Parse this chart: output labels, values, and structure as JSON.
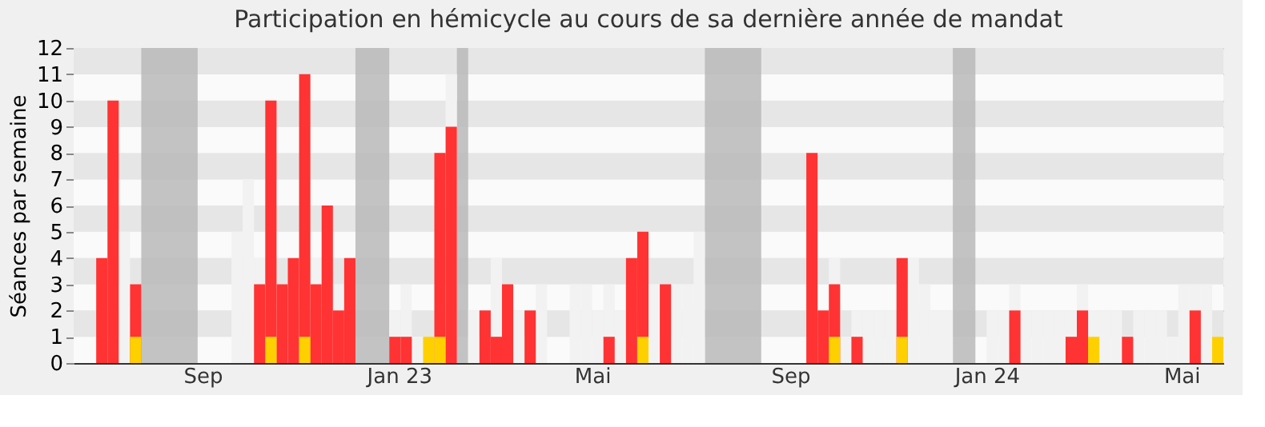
{
  "chart_data": {
    "type": "bar",
    "title": "Participation en hémicycle au cours de sa dernière année de mandat",
    "ylabel": "Séances par semaine",
    "x": [
      "2022-06-27",
      "2022-07-04",
      "2022-07-11",
      "2022-07-18",
      "2022-07-25",
      "2022-08-01",
      "2022-08-08",
      "2022-08-15",
      "2022-08-22",
      "2022-08-29",
      "2022-09-05",
      "2022-09-12",
      "2022-09-19",
      "2022-09-26",
      "2022-10-03",
      "2022-10-10",
      "2022-10-17",
      "2022-10-24",
      "2022-10-31",
      "2022-11-07",
      "2022-11-14",
      "2022-11-21",
      "2022-11-28",
      "2022-12-05",
      "2022-12-12",
      "2022-12-19",
      "2022-12-26",
      "2023-01-02",
      "2023-01-09",
      "2023-01-16",
      "2023-01-23",
      "2023-01-30",
      "2023-02-06",
      "2023-02-13",
      "2023-02-20",
      "2023-02-27",
      "2023-03-06",
      "2023-03-13",
      "2023-03-20",
      "2023-03-27",
      "2023-04-03",
      "2023-04-10",
      "2023-04-17",
      "2023-04-24",
      "2023-05-01",
      "2023-05-08",
      "2023-05-15",
      "2023-05-22",
      "2023-05-29",
      "2023-06-05",
      "2023-06-12",
      "2023-06-19",
      "2023-06-26",
      "2023-07-03",
      "2023-07-10",
      "2023-07-17",
      "2023-07-24",
      "2023-07-31",
      "2023-08-07",
      "2023-08-14",
      "2023-08-21",
      "2023-08-28",
      "2023-09-04",
      "2023-09-11",
      "2023-09-18",
      "2023-09-25",
      "2023-10-02",
      "2023-10-09",
      "2023-10-16",
      "2023-10-23",
      "2023-10-30",
      "2023-11-06",
      "2023-11-13",
      "2023-11-20",
      "2023-11-27",
      "2023-12-04",
      "2023-12-11",
      "2023-12-18",
      "2023-12-25",
      "2024-01-01",
      "2024-01-08",
      "2024-01-15",
      "2024-01-22",
      "2024-01-29",
      "2024-02-05",
      "2024-02-12",
      "2024-02-19",
      "2024-02-26",
      "2024-03-04",
      "2024-03-11",
      "2024-03-18",
      "2024-03-25",
      "2024-04-01",
      "2024-04-08",
      "2024-04-15",
      "2024-04-22",
      "2024-04-29",
      "2024-05-06",
      "2024-05-13",
      "2024-05-20"
    ],
    "xlim": [
      "2022-06-13",
      "2024-05-27"
    ],
    "xticks": [
      {
        "value": "2022-09-01",
        "label": "Sep"
      },
      {
        "value": "2023-01-01",
        "label": "Jan 23"
      },
      {
        "value": "2023-05-01",
        "label": "Mai"
      },
      {
        "value": "2023-09-01",
        "label": "Sep"
      },
      {
        "value": "2024-01-01",
        "label": "Jan 24"
      },
      {
        "value": "2024-05-01",
        "label": "Mai"
      }
    ],
    "series": [
      {
        "color": "#f2f2f2",
        "values": [
          null,
          null,
          5,
          null,
          null,
          null,
          null,
          null,
          null,
          null,
          null,
          null,
          5,
          7,
          4,
          null,
          null,
          null,
          null,
          4,
          null,
          3,
          null,
          null,
          null,
          null,
          2,
          3,
          1,
          null,
          null,
          11,
          null,
          2,
          null,
          4,
          null,
          2,
          null,
          3,
          null,
          null,
          3,
          3,
          2,
          3,
          2,
          null,
          null,
          3,
          null,
          3,
          3,
          5,
          null,
          null,
          null,
          null,
          null,
          null,
          null,
          null,
          null,
          null,
          null,
          4,
          1,
          2,
          2,
          2,
          2,
          null,
          4,
          3,
          2,
          2,
          null,
          null,
          null,
          2,
          2,
          3,
          2,
          2,
          2,
          2,
          2,
          3,
          2,
          2,
          2,
          null,
          2,
          2,
          2,
          1,
          3,
          3,
          3,
          null
        ]
      },
      {
        "color": "#ff3333",
        "values": [
          4,
          10,
          null,
          3,
          null,
          null,
          null,
          null,
          null,
          null,
          null,
          null,
          null,
          null,
          3,
          10,
          3,
          4,
          11,
          3,
          6,
          2,
          4,
          null,
          null,
          null,
          1,
          1,
          null,
          null,
          8,
          9,
          null,
          null,
          2,
          1,
          3,
          null,
          2,
          null,
          null,
          null,
          null,
          null,
          null,
          1,
          null,
          4,
          5,
          null,
          3,
          null,
          null,
          null,
          null,
          null,
          null,
          null,
          null,
          null,
          null,
          null,
          null,
          8,
          2,
          3,
          null,
          1,
          null,
          null,
          null,
          4,
          null,
          null,
          null,
          null,
          null,
          null,
          null,
          null,
          null,
          2,
          null,
          null,
          null,
          null,
          1,
          2,
          null,
          null,
          null,
          1,
          null,
          null,
          null,
          null,
          null,
          2,
          null,
          null
        ]
      },
      {
        "color": "#ffd000",
        "values": [
          null,
          null,
          null,
          1,
          null,
          null,
          null,
          null,
          null,
          null,
          null,
          null,
          null,
          null,
          null,
          1,
          null,
          null,
          1,
          null,
          null,
          null,
          null,
          null,
          null,
          null,
          null,
          null,
          null,
          1,
          1,
          null,
          null,
          null,
          null,
          null,
          null,
          null,
          null,
          null,
          null,
          null,
          null,
          null,
          null,
          null,
          null,
          null,
          1,
          null,
          null,
          null,
          null,
          null,
          null,
          null,
          null,
          null,
          null,
          null,
          null,
          null,
          null,
          null,
          null,
          1,
          null,
          null,
          null,
          null,
          null,
          1,
          null,
          null,
          null,
          null,
          null,
          null,
          null,
          null,
          null,
          null,
          null,
          null,
          null,
          null,
          null,
          null,
          1,
          null,
          null,
          null,
          null,
          null,
          null,
          null,
          null,
          null,
          null,
          1
        ]
      }
    ],
    "bands": [
      {
        "axis": "x",
        "from": "2022-07-25",
        "to": "2022-08-29",
        "color": "#b8b8b8"
      },
      {
        "axis": "x",
        "from": "2022-12-05",
        "to": "2022-12-26",
        "color": "#b8b8b8"
      },
      {
        "axis": "x",
        "from": "2023-02-06",
        "to": "2023-02-13",
        "color": "#b8b8b8"
      },
      {
        "axis": "x",
        "from": "2023-07-10",
        "to": "2023-08-14",
        "color": "#b8b8b8"
      },
      {
        "axis": "x",
        "from": "2023-12-11",
        "to": "2023-12-25",
        "color": "#b8b8b8"
      }
    ],
    "ylim": [
      0,
      12
    ],
    "yticks": [
      0,
      1,
      2,
      3,
      4,
      5,
      6,
      7,
      8,
      9,
      10,
      11,
      12
    ],
    "grid": "y"
  }
}
